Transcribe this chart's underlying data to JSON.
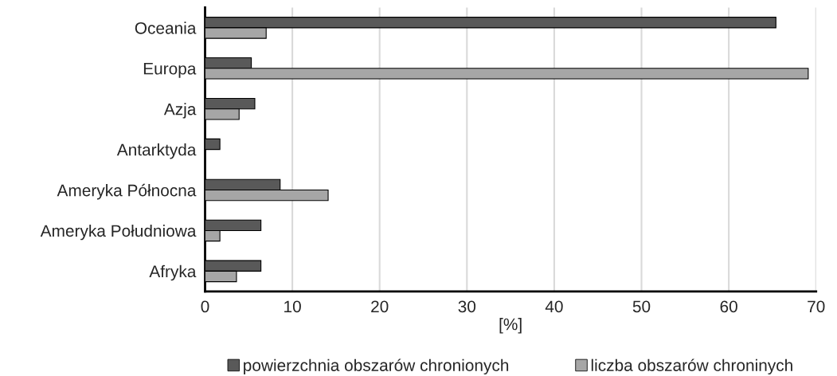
{
  "chart_data": {
    "type": "bar",
    "orientation": "horizontal",
    "xlabel": "[%]",
    "categories": [
      "Oceania",
      "Europa",
      "Azja",
      "Antarktyda",
      "Ameryka Północna",
      "Ameryka Południowa",
      "Afryka"
    ],
    "series": [
      {
        "name": "powierzchnia obszarów chronionych",
        "color": "#595959",
        "values": [
          65.4,
          5.3,
          5.7,
          1.7,
          8.6,
          6.4,
          6.4
        ]
      },
      {
        "name": "liczba obszarów chroninych",
        "color": "#a6a6a6",
        "values": [
          7.0,
          69.1,
          3.9,
          null,
          14.1,
          1.7,
          3.6
        ]
      }
    ],
    "xlim": [
      0,
      70
    ],
    "xticks": [
      0,
      10,
      20,
      30,
      40,
      50,
      60,
      70
    ],
    "grid": "x",
    "legend": "bottom"
  }
}
